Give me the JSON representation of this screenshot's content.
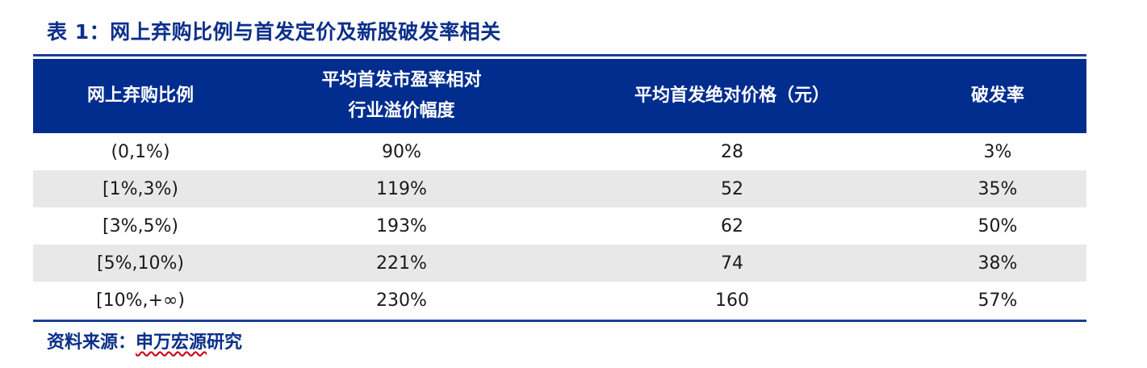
{
  "title": "表 1：网上弃购比例与首发定价及新股破发率相关",
  "table": {
    "headers": [
      [
        "网上弃购比例"
      ],
      [
        "平均首发市盈率相对",
        "行业溢价幅度"
      ],
      [
        "平均首发绝对价格（元）"
      ],
      [
        "破发率"
      ]
    ],
    "rows": [
      [
        "(0,1%)",
        "90%",
        "28",
        "3%"
      ],
      [
        "[1%,3%)",
        "119%",
        "52",
        "35%"
      ],
      [
        "[3%,5%)",
        "193%",
        "62",
        "50%"
      ],
      [
        "[5%,10%)",
        "221%",
        "74",
        "38%"
      ],
      [
        "[10%,+∞)",
        "230%",
        "160",
        "57%"
      ]
    ]
  },
  "source": {
    "label": "资料来源：",
    "org": "申万宏源",
    "suffix": "研究"
  },
  "colors": {
    "header_bg": "#002d8e",
    "title_text": "#0b2f8a",
    "row_shade": "#e8e8e8"
  }
}
